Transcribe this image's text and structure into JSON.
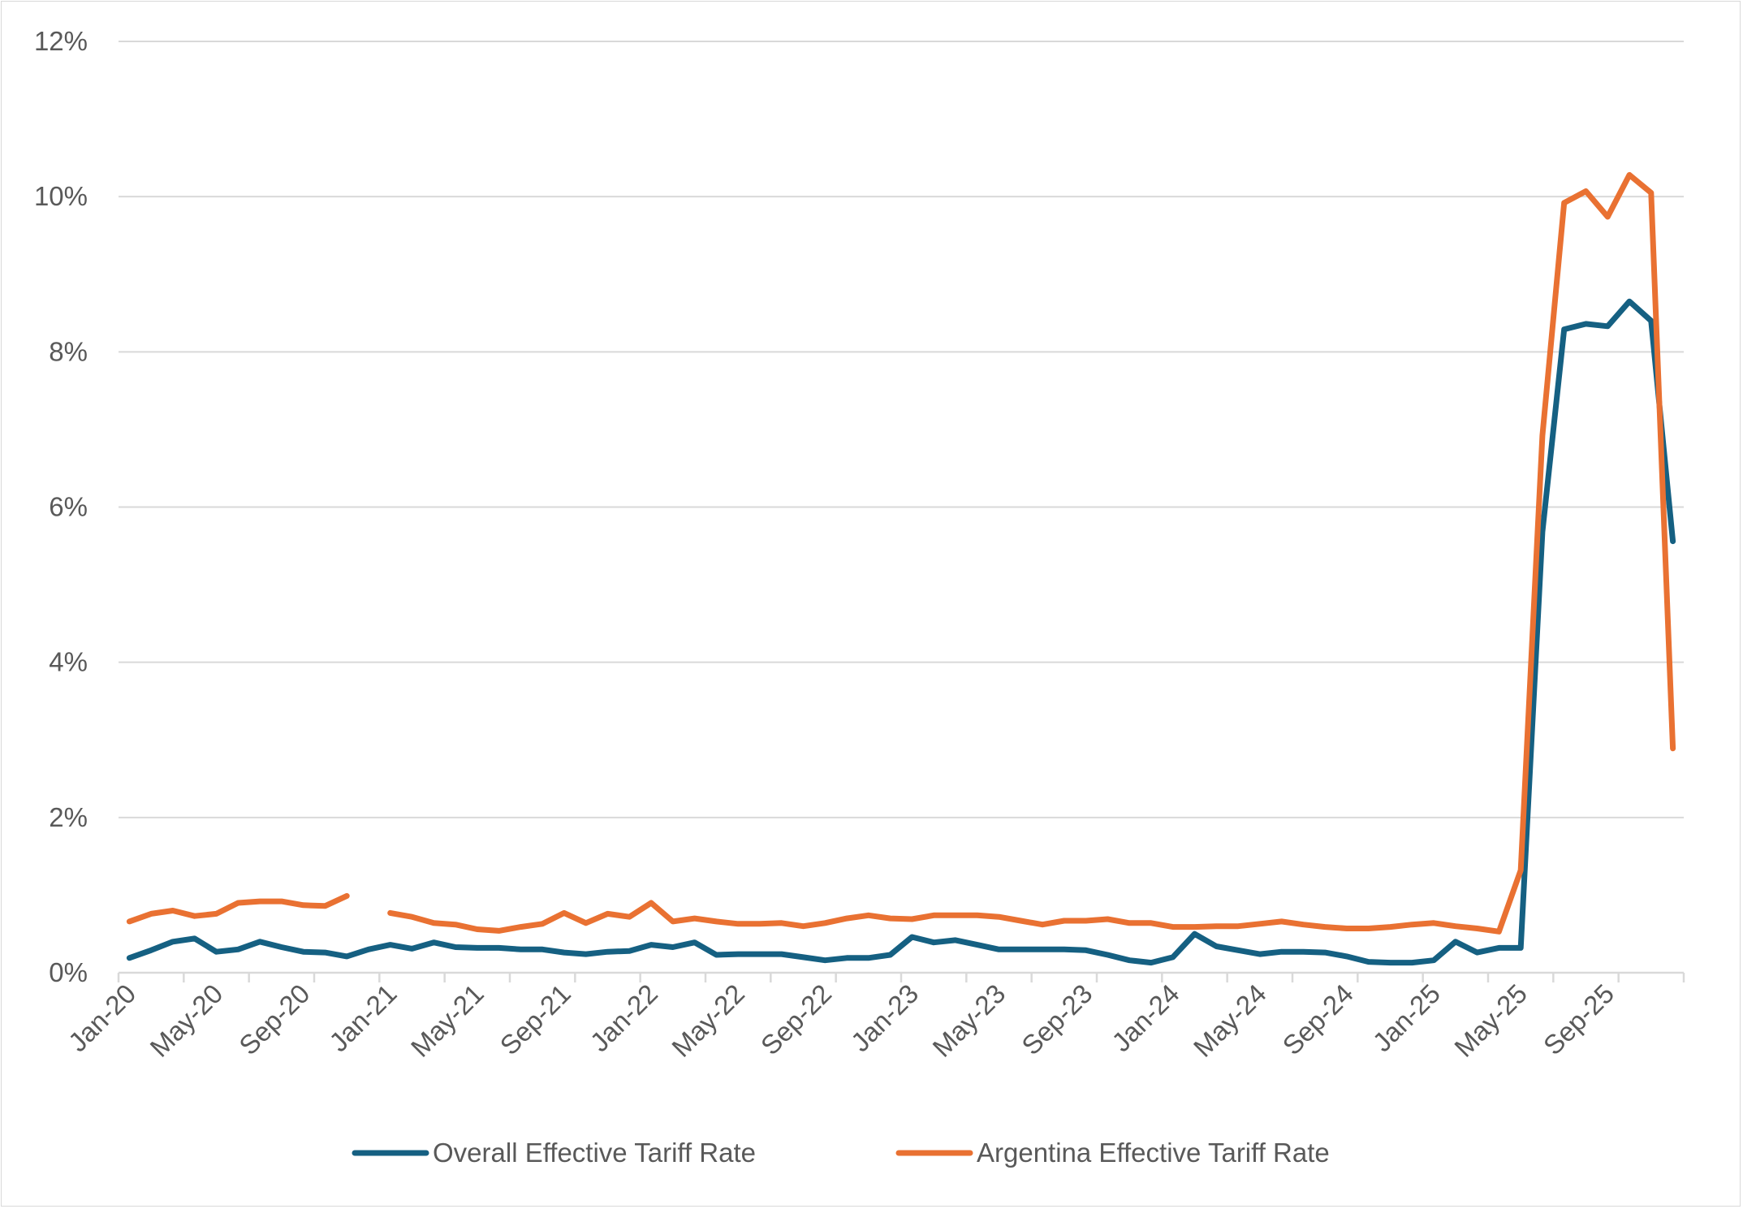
{
  "chart_data": {
    "type": "line",
    "title": "",
    "xlabel": "",
    "ylabel": "",
    "ylim": [
      0,
      12
    ],
    "y_ticks": [
      "0%",
      "2%",
      "4%",
      "6%",
      "8%",
      "10%",
      "12%"
    ],
    "y_tick_values": [
      0,
      2,
      4,
      6,
      8,
      10,
      12
    ],
    "grid": true,
    "legend_position": "bottom",
    "x_tick_labels": [
      "Jan-20",
      "May-20",
      "Sep-20",
      "Jan-21",
      "May-21",
      "Sep-21",
      "Jan-22",
      "May-22",
      "Sep-22",
      "Jan-23",
      "May-23",
      "Sep-23",
      "Jan-24",
      "May-24",
      "Sep-24",
      "Jan-25",
      "May-25",
      "Sep-25"
    ],
    "x": [
      "Jan-20",
      "Feb-20",
      "Mar-20",
      "Apr-20",
      "May-20",
      "Jun-20",
      "Jul-20",
      "Aug-20",
      "Sep-20",
      "Oct-20",
      "Nov-20",
      "Dec-20",
      "Jan-21",
      "Feb-21",
      "Mar-21",
      "Apr-21",
      "May-21",
      "Jun-21",
      "Jul-21",
      "Aug-21",
      "Sep-21",
      "Oct-21",
      "Nov-21",
      "Dec-21",
      "Jan-22",
      "Feb-22",
      "Mar-22",
      "Apr-22",
      "May-22",
      "Jun-22",
      "Jul-22",
      "Aug-22",
      "Sep-22",
      "Oct-22",
      "Nov-22",
      "Dec-22",
      "Jan-23",
      "Feb-23",
      "Mar-23",
      "Apr-23",
      "May-23",
      "Jun-23",
      "Jul-23",
      "Aug-23",
      "Sep-23",
      "Oct-23",
      "Nov-23",
      "Dec-23",
      "Jan-24",
      "Feb-24",
      "Mar-24",
      "Apr-24",
      "May-24",
      "Jun-24",
      "Jul-24",
      "Aug-24",
      "Sep-24",
      "Oct-24",
      "Nov-24",
      "Dec-24",
      "Jan-25",
      "Feb-25",
      "Mar-25",
      "Apr-25",
      "May-25",
      "Jun-25",
      "Jul-25",
      "Aug-25",
      "Sep-25",
      "Oct-25",
      "Nov-25",
      "Dec-25"
    ],
    "series": [
      {
        "name": "Overall Effective Tariff Rate",
        "color": "#156082",
        "values": [
          0.19,
          0.29,
          0.4,
          0.44,
          0.27,
          0.3,
          0.4,
          0.33,
          0.27,
          0.26,
          0.21,
          0.3,
          0.36,
          0.31,
          0.39,
          0.33,
          0.32,
          0.32,
          0.3,
          0.3,
          0.26,
          0.24,
          0.27,
          0.28,
          0.36,
          0.33,
          0.39,
          0.23,
          0.24,
          0.24,
          0.24,
          0.2,
          0.16,
          0.19,
          0.19,
          0.23,
          0.46,
          0.39,
          0.42,
          0.36,
          0.3,
          0.3,
          0.3,
          0.3,
          0.29,
          0.23,
          0.16,
          0.13,
          0.2,
          0.5,
          0.34,
          0.29,
          0.24,
          0.27,
          0.27,
          0.26,
          0.21,
          0.14,
          0.13,
          0.13,
          0.16,
          0.4,
          0.26,
          0.32,
          0.32,
          5.68,
          8.29,
          8.36,
          8.33,
          8.65,
          8.4,
          5.56
        ]
      },
      {
        "name": "Argentina Effective Tariff Rate",
        "color": "#E97132",
        "values": [
          0.66,
          0.76,
          0.8,
          0.73,
          0.76,
          0.9,
          0.92,
          0.92,
          0.87,
          0.86,
          0.99,
          null,
          0.77,
          0.72,
          0.64,
          0.62,
          0.56,
          0.54,
          0.59,
          0.63,
          0.77,
          0.64,
          0.76,
          0.72,
          0.9,
          0.66,
          0.7,
          0.66,
          0.63,
          0.63,
          0.64,
          0.6,
          0.64,
          0.7,
          0.74,
          0.7,
          0.69,
          0.74,
          0.74,
          0.74,
          0.72,
          0.67,
          0.62,
          0.67,
          0.67,
          0.69,
          0.64,
          0.64,
          0.59,
          0.59,
          0.6,
          0.6,
          0.63,
          0.66,
          0.62,
          0.59,
          0.57,
          0.57,
          0.59,
          0.62,
          0.64,
          0.6,
          0.57,
          0.53,
          1.32,
          6.92,
          9.92,
          10.07,
          9.74,
          10.28,
          10.05,
          2.89
        ]
      }
    ]
  }
}
